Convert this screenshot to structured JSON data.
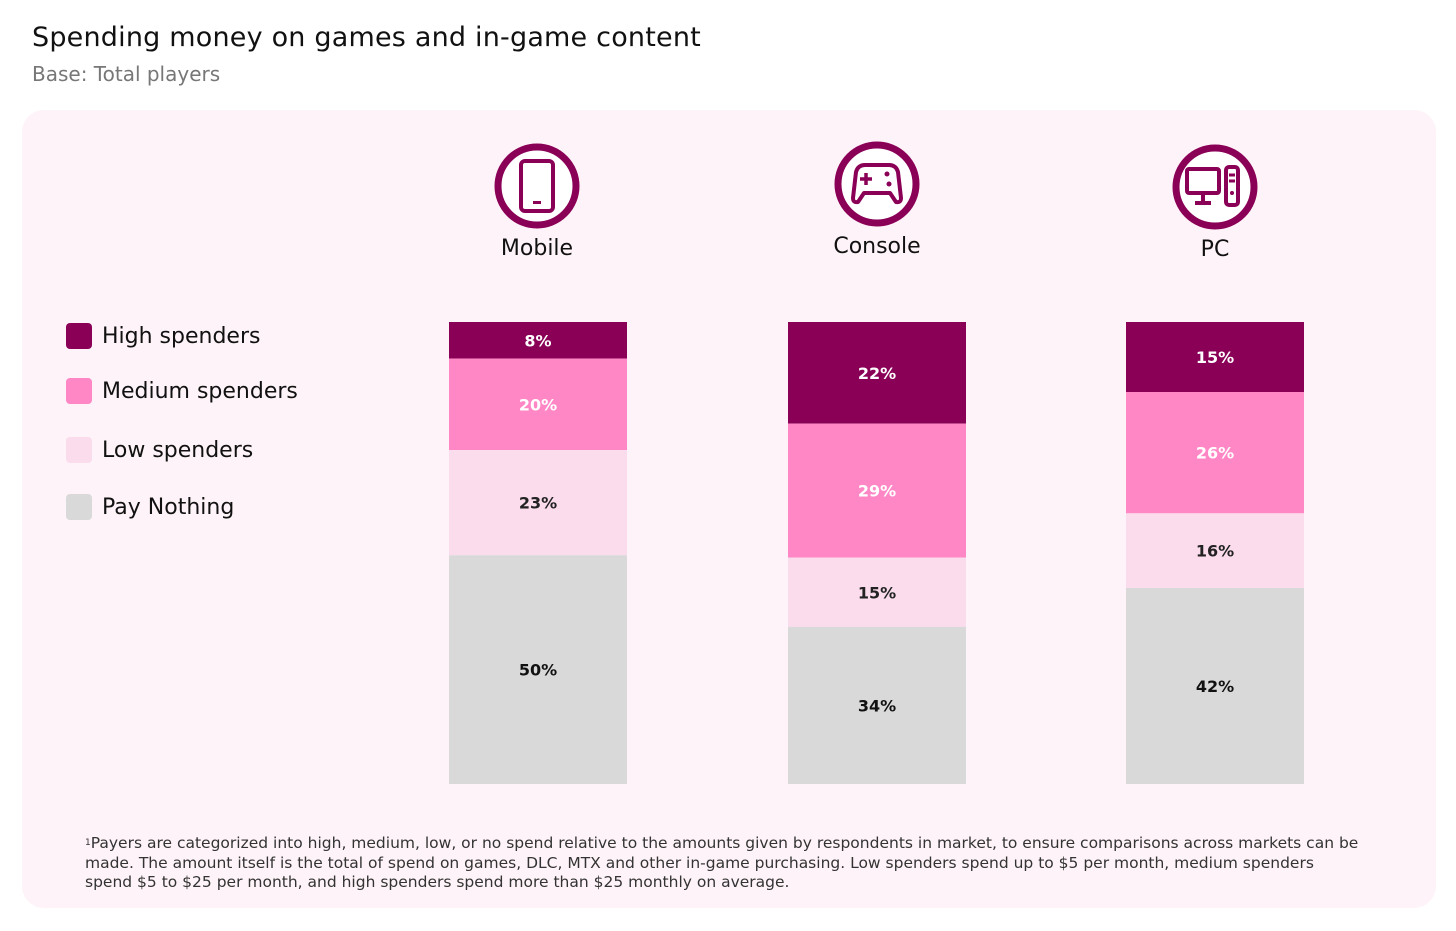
{
  "title": "Spending money on games and in-game content",
  "subtitle": "Base: Total players",
  "chart_data": {
    "type": "bar",
    "stacked": true,
    "title": "Spending money on games and in-game content",
    "subtitle": "Base: Total players",
    "categories": [
      "Mobile",
      "Console",
      "PC"
    ],
    "category_icons": [
      "smartphone-icon",
      "gamepad-icon",
      "desktop-pc-icon"
    ],
    "series": [
      {
        "name": "High spenders",
        "color": "#8a0057",
        "label_color": "#ffffff",
        "values": [
          8,
          22,
          15
        ]
      },
      {
        "name": "Medium spenders",
        "color": "#ff87c5",
        "label_color": "#ffffff",
        "values": [
          20,
          29,
          26
        ]
      },
      {
        "name": "Low spenders",
        "color": "#fadcec",
        "label_color": "#222222",
        "values": [
          23,
          15,
          16
        ]
      },
      {
        "name": "Pay Nothing",
        "color": "#d9d9d9",
        "label_color": "#111111",
        "values": [
          50,
          34,
          42
        ]
      }
    ],
    "unit": "%",
    "legend": "left",
    "grid": false
  },
  "footnote_mark": "1",
  "footnote": "Payers are categorized into high, medium, low, or no spend relative to the amounts given by respondents in market, to ensure comparisons across markets can be made. The amount itself is the total of spend on games, DLC, MTX and other in-game purchasing. Low spenders spend up to $5 per month, medium spenders spend $5 to $25 per month, and high spenders spend more than $25 monthly on average."
}
